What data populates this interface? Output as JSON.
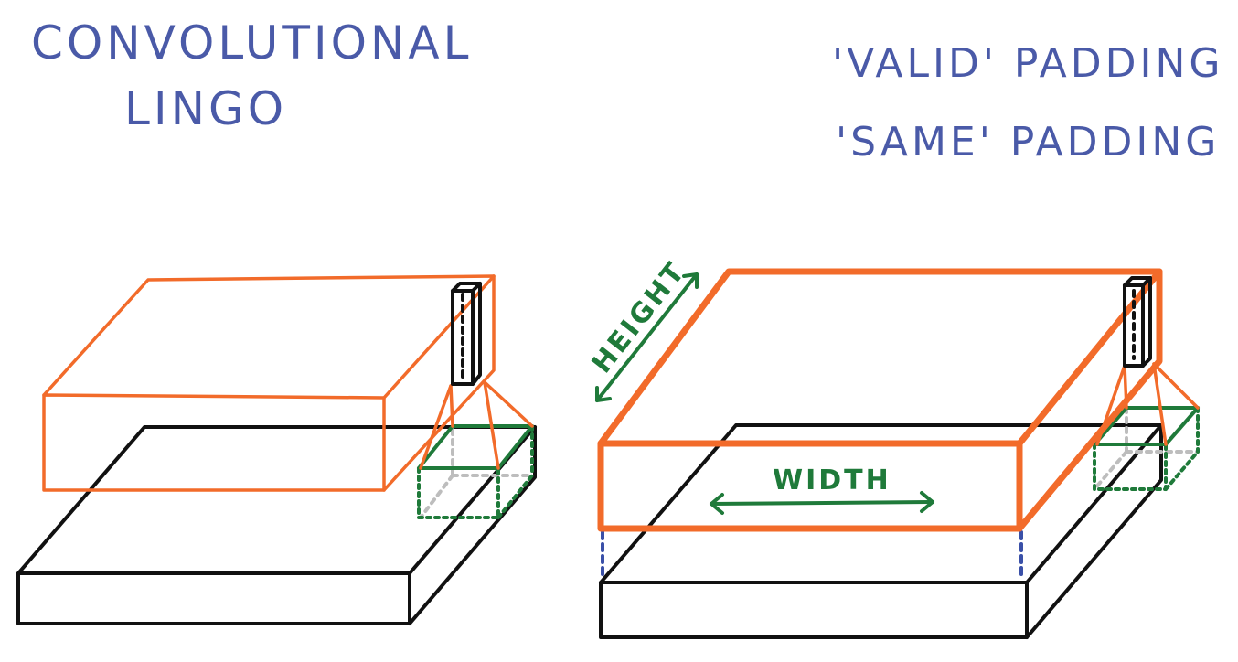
{
  "title": {
    "line1": "CONVOLUTIONAL",
    "line2": "LINGO"
  },
  "padding_terms": {
    "valid": "'VALID' PADDING",
    "same": "'SAME' PADDING"
  },
  "dimension_labels": {
    "height": "HEIGHT",
    "width": "WIDTH"
  },
  "colors": {
    "ink_blue": "#4a5aa8",
    "output_orange": "#f26b2a",
    "input_black": "#111111",
    "patch_green": "#1f7a3a",
    "guide_gray": "#bdbdbd",
    "align_blue": "#3a50a8"
  }
}
